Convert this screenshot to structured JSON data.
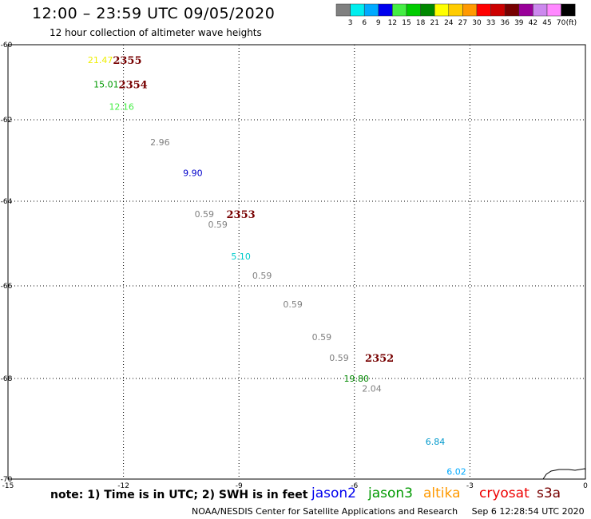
{
  "title": "12:00 – 23:59 UTC 09/05/2020",
  "subtitle": "12 hour collection of altimeter wave heights",
  "note": "note: 1) Time is in UTC; 2) SWH is in feet",
  "credit": "NOAA/NESDIS Center for Satellite Applications and Research",
  "timestamp": "Sep  6 12:28:54 UTC 2020",
  "satellites": [
    {
      "name": "jason2",
      "color": "#0000ee"
    },
    {
      "name": "jason3",
      "color": "#009900"
    },
    {
      "name": "altika",
      "color": "#ff9900"
    },
    {
      "name": "cryosat",
      "color": "#ee0000"
    },
    {
      "name": "s3a",
      "color": "#770000"
    }
  ],
  "chart_data": {
    "type": "scatter",
    "xlim": [
      -15,
      0
    ],
    "ylim": [
      -70,
      -60
    ],
    "x_ticks": [
      -15,
      -12,
      -9,
      -6,
      -3,
      0
    ],
    "y_ticks": [
      -60,
      -62,
      -64,
      -66,
      -68,
      -70
    ],
    "x_tick_labels": [
      "-15",
      "-12",
      "-9",
      "-6",
      "-3",
      "0"
    ],
    "y_tick_labels": [
      "-60",
      "-62",
      "-64",
      "-66",
      "-68",
      "-70"
    ],
    "grid": true,
    "colorbar": {
      "unit": "(ft)",
      "labels": [
        "3",
        "6",
        "9",
        "12",
        "15",
        "18",
        "21",
        "24",
        "27",
        "30",
        "33",
        "36",
        "39",
        "42",
        "45",
        "70"
      ],
      "colors": [
        "#808080",
        "#00eeee",
        "#00aaff",
        "#0000ee",
        "#44ee44",
        "#00cc00",
        "#008800",
        "#ffff00",
        "#ffcc00",
        "#ff9900",
        "#ff0000",
        "#cc0000",
        "#770000",
        "#990099",
        "#cc88ee",
        "#ff88ff",
        "#000000"
      ]
    },
    "points": [
      {
        "lon": -12.6,
        "lat": -60.4,
        "value": "21.47",
        "color": "#eeee00"
      },
      {
        "lon": -12.45,
        "lat": -61.05,
        "value": "15.01",
        "color": "#009900"
      },
      {
        "lon": -12.05,
        "lat": -61.65,
        "value": "12.16",
        "color": "#44ee44"
      },
      {
        "lon": -11.05,
        "lat": -62.55,
        "value": "2.96",
        "color": "#808080"
      },
      {
        "lon": -10.2,
        "lat": -63.3,
        "value": "9.90",
        "color": "#0000cc"
      },
      {
        "lon": -9.9,
        "lat": -64.3,
        "value": "0.59",
        "color": "#808080"
      },
      {
        "lon": -9.55,
        "lat": -64.55,
        "value": "0.59",
        "color": "#808080"
      },
      {
        "lon": -8.95,
        "lat": -65.3,
        "value": "5.10",
        "color": "#00cccc"
      },
      {
        "lon": -8.4,
        "lat": -65.75,
        "value": "0.59",
        "color": "#808080"
      },
      {
        "lon": -7.6,
        "lat": -66.4,
        "value": "0.59",
        "color": "#808080"
      },
      {
        "lon": -6.85,
        "lat": -67.1,
        "value": "0.59",
        "color": "#808080"
      },
      {
        "lon": -6.4,
        "lat": -67.55,
        "value": "0.59",
        "color": "#808080"
      },
      {
        "lon": -5.95,
        "lat": -68.0,
        "value": "19.80",
        "color": "#008800"
      },
      {
        "lon": -5.55,
        "lat": -68.2,
        "value": "2.04",
        "color": "#808080"
      },
      {
        "lon": -3.9,
        "lat": -69.25,
        "value": "6.84",
        "color": "#0099cc"
      },
      {
        "lon": -3.35,
        "lat": -69.85,
        "value": "6.02",
        "color": "#00aaff"
      }
    ],
    "time_labels": [
      {
        "lon": -11.9,
        "lat": -60.4,
        "text": "2355",
        "color": "#770000"
      },
      {
        "lon": -11.75,
        "lat": -61.05,
        "text": "2354",
        "color": "#770000"
      },
      {
        "lon": -8.95,
        "lat": -64.3,
        "text": "2353",
        "color": "#770000"
      },
      {
        "lon": -5.35,
        "lat": -67.55,
        "text": "2352",
        "color": "#770000"
      }
    ]
  }
}
